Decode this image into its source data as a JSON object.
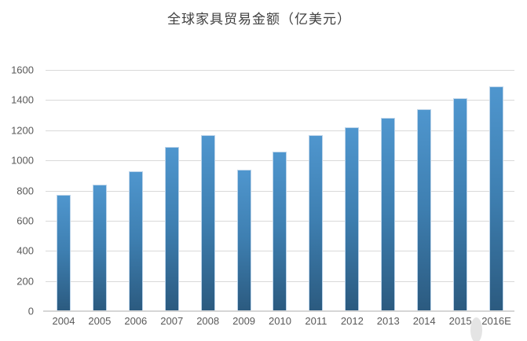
{
  "page": {
    "background": "#ffffff"
  },
  "chart_data": {
    "type": "bar",
    "title": "全球家具贸易金额（亿美元）",
    "categories": [
      "2004",
      "2005",
      "2006",
      "2007",
      "2008",
      "2009",
      "2010",
      "2011",
      "2012",
      "2013",
      "2014",
      "2015",
      "2016E"
    ],
    "values": [
      770,
      840,
      930,
      1090,
      1170,
      940,
      1060,
      1170,
      1220,
      1280,
      1340,
      1410,
      1490
    ],
    "xlabel": "",
    "ylabel": "",
    "ylim": [
      0,
      1600
    ],
    "yticks": [
      0,
      200,
      400,
      600,
      800,
      1000,
      1200,
      1400,
      1600
    ],
    "grid": "horizontal",
    "legend": "none",
    "colors": {
      "bar_top": "#4f96ce",
      "bar_mid": "#3e7fb1",
      "bar_bottom": "#2b5a7f",
      "bar_border": "#bcd4ea",
      "gridline": "#d9d9d9",
      "axis_line": "#d6d6d6",
      "tick_label": "#595959",
      "title": "#3f3f3f"
    }
  },
  "artifacts": {
    "watermark_blob_color": "#e4e4e4"
  }
}
